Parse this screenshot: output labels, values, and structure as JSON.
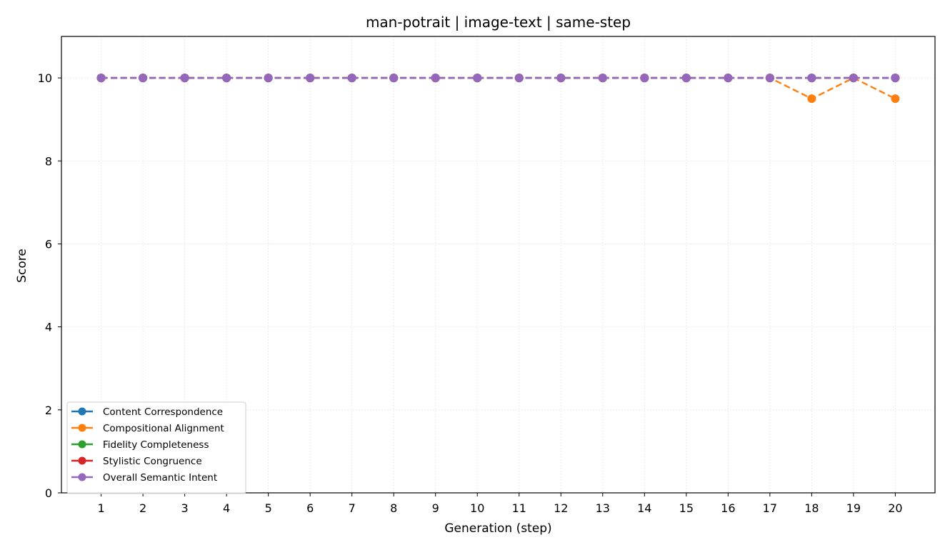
{
  "chart_data": {
    "type": "line",
    "title": "man-potrait | image-text | same-step",
    "xlabel": "Generation (step)",
    "ylabel": "Score",
    "x": [
      1,
      2,
      3,
      4,
      5,
      6,
      7,
      8,
      9,
      10,
      11,
      12,
      13,
      14,
      15,
      16,
      17,
      18,
      19,
      20
    ],
    "xlim": [
      0.05,
      20.95
    ],
    "ylim": [
      0,
      11
    ],
    "yticks": [
      0,
      2,
      4,
      6,
      8,
      10
    ],
    "grid": true,
    "legend_position": "lower-left",
    "series": [
      {
        "name": "Content Correspondence",
        "color": "#1f77b4",
        "values": [
          10,
          10,
          10,
          10,
          10,
          10,
          10,
          10,
          10,
          10,
          10,
          10,
          10,
          10,
          10,
          10,
          10,
          10,
          10,
          10
        ]
      },
      {
        "name": "Compositional Alignment",
        "color": "#ff7f0e",
        "values": [
          10,
          10,
          10,
          10,
          10,
          10,
          10,
          10,
          10,
          10,
          10,
          10,
          10,
          10,
          10,
          10,
          10,
          9.5,
          10,
          9.5
        ]
      },
      {
        "name": "Fidelity Completeness",
        "color": "#2ca02c",
        "values": [
          10,
          10,
          10,
          10,
          10,
          10,
          10,
          10,
          10,
          10,
          10,
          10,
          10,
          10,
          10,
          10,
          10,
          10,
          10,
          10
        ]
      },
      {
        "name": "Stylistic Congruence",
        "color": "#d62728",
        "values": [
          10,
          10,
          10,
          10,
          10,
          10,
          10,
          10,
          10,
          10,
          10,
          10,
          10,
          10,
          10,
          10,
          10,
          10,
          10,
          10
        ]
      },
      {
        "name": "Overall Semantic Intent",
        "color": "#9467bd",
        "values": [
          10,
          10,
          10,
          10,
          10,
          10,
          10,
          10,
          10,
          10,
          10,
          10,
          10,
          10,
          10,
          10,
          10,
          10,
          10,
          10
        ]
      }
    ]
  }
}
